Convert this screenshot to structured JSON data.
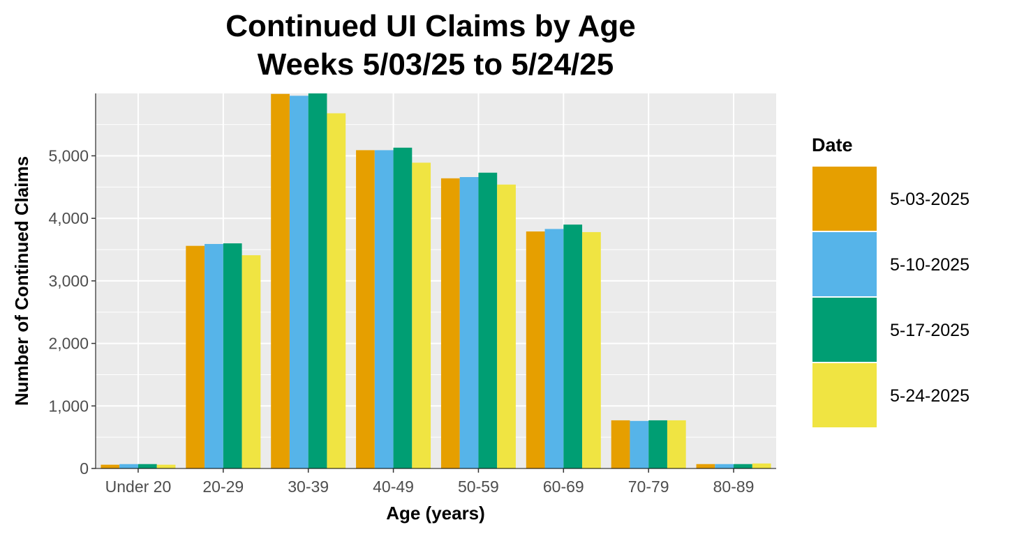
{
  "chart_data": {
    "type": "bar",
    "title_line1": "Continued UI Claims by Age",
    "title_line2": "Weeks 5/03/25 to 5/24/25",
    "xlabel": "Age (years)",
    "ylabel": "Number of Continued Claims",
    "categories": [
      "Under 20",
      "20-29",
      "30-39",
      "40-49",
      "50-59",
      "60-69",
      "70-79",
      "80-89"
    ],
    "ylim": [
      0,
      6000
    ],
    "yticks": [
      0,
      1000,
      2000,
      3000,
      4000,
      5000
    ],
    "ytick_labels": [
      "0",
      "1,000",
      "2,000",
      "3,000",
      "4,000",
      "5,000"
    ],
    "grid": true,
    "legend_title": "Date",
    "legend_position": "right",
    "series": [
      {
        "name": "5-03-2025",
        "color": "#E69F00",
        "values": [
          60,
          3560,
          5990,
          5090,
          4640,
          3790,
          770,
          70
        ]
      },
      {
        "name": "5-10-2025",
        "color": "#56B4E9",
        "values": [
          70,
          3590,
          5960,
          5090,
          4660,
          3830,
          760,
          70
        ]
      },
      {
        "name": "5-17-2025",
        "color": "#009E73",
        "values": [
          70,
          3600,
          6020,
          5130,
          4730,
          3900,
          770,
          70
        ]
      },
      {
        "name": "5-24-2025",
        "color": "#F0E442",
        "values": [
          60,
          3410,
          5680,
          4890,
          4540,
          3780,
          770,
          80
        ]
      }
    ]
  }
}
